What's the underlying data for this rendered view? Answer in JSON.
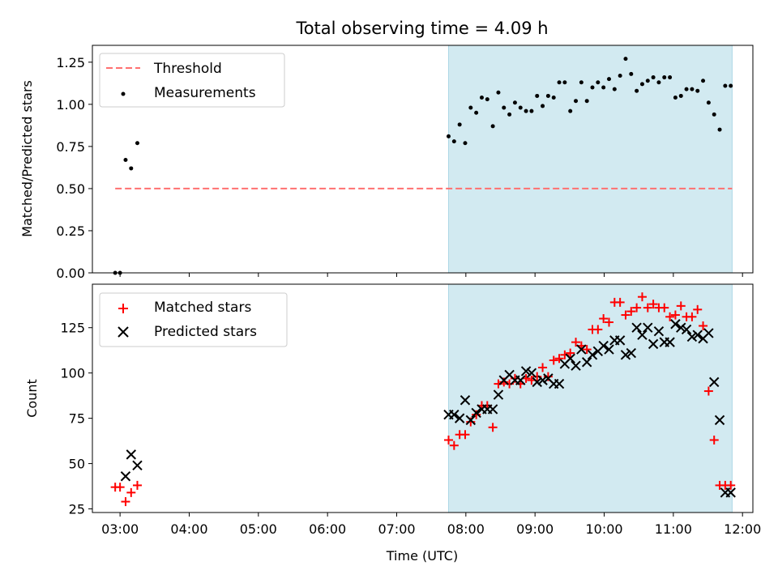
{
  "title": "Total observing time = 4.09 h",
  "colors": {
    "threshold": "#ff7070",
    "measurements": "#000000",
    "matched": "#ff0000",
    "predicted": "#000000",
    "observing_span": "#add8e6"
  },
  "chart_data": [
    {
      "type": "scatter",
      "name": "ratio-panel",
      "ylabel": "Matched/Predicted stars",
      "xlim": [
        2.6,
        12.15
      ],
      "ylim": [
        0,
        1.35
      ],
      "yticks": [
        0.0,
        0.25,
        0.5,
        0.75,
        1.0,
        1.25
      ],
      "ytick_labels": [
        "0.00",
        "0.25",
        "0.50",
        "0.75",
        "1.00",
        "1.25"
      ],
      "xticks": [
        3,
        4,
        5,
        6,
        7,
        8,
        9,
        10,
        11,
        12
      ],
      "shaded_span": [
        7.75,
        11.85
      ],
      "threshold": {
        "label": "Threshold",
        "y": 0.5,
        "x_range": [
          2.93,
          11.85
        ]
      },
      "legend": {
        "placement": "upper-left",
        "entries": [
          "Threshold",
          "Measurements"
        ]
      },
      "series": [
        {
          "name": "Measurements",
          "marker": "dot",
          "x": [
            2.93,
            3.0,
            3.08,
            3.16,
            3.25,
            7.75,
            7.83,
            7.91,
            7.99,
            8.07,
            8.15,
            8.23,
            8.31,
            8.39,
            8.47,
            8.55,
            8.63,
            8.71,
            8.79,
            8.87,
            8.95,
            9.03,
            9.11,
            9.19,
            9.27,
            9.35,
            9.43,
            9.51,
            9.59,
            9.67,
            9.75,
            9.83,
            9.91,
            9.99,
            10.07,
            10.15,
            10.23,
            10.31,
            10.39,
            10.47,
            10.55,
            10.63,
            10.71,
            10.79,
            10.87,
            10.95,
            11.03,
            11.11,
            11.19,
            11.27,
            11.35,
            11.43,
            11.51,
            11.59,
            11.67,
            11.75,
            11.83
          ],
          "y": [
            0.0,
            0.0,
            0.67,
            0.62,
            0.77,
            0.81,
            0.78,
            0.88,
            0.77,
            0.98,
            0.95,
            1.04,
            1.03,
            0.87,
            1.07,
            0.98,
            0.94,
            1.01,
            0.98,
            0.96,
            0.96,
            1.05,
            0.99,
            1.05,
            1.04,
            1.13,
            1.13,
            0.96,
            1.02,
            1.13,
            1.02,
            1.1,
            1.13,
            1.1,
            1.15,
            1.09,
            1.17,
            1.27,
            1.18,
            1.08,
            1.12,
            1.14,
            1.16,
            1.13,
            1.16,
            1.16,
            1.04,
            1.05,
            1.09,
            1.09,
            1.08,
            1.14,
            1.01,
            0.94,
            0.85,
            1.11,
            1.11
          ]
        }
      ]
    },
    {
      "type": "scatter",
      "name": "count-panel",
      "xlabel": "Time (UTC)",
      "ylabel": "Count",
      "xlim": [
        2.6,
        12.15
      ],
      "ylim": [
        23,
        149
      ],
      "yticks": [
        25,
        50,
        75,
        100,
        125
      ],
      "ytick_labels": [
        "25",
        "50",
        "75",
        "100",
        "125"
      ],
      "xticks": [
        3,
        4,
        5,
        6,
        7,
        8,
        9,
        10,
        11,
        12
      ],
      "xtick_labels": [
        "03:00",
        "04:00",
        "05:00",
        "06:00",
        "07:00",
        "08:00",
        "09:00",
        "10:00",
        "11:00",
        "12:00"
      ],
      "shaded_span": [
        7.75,
        11.85
      ],
      "legend": {
        "placement": "upper-left",
        "entries": [
          "Matched stars",
          "Predicted stars"
        ]
      },
      "series": [
        {
          "name": "Matched stars",
          "marker": "plus",
          "x": [
            2.93,
            3.0,
            3.08,
            3.16,
            3.25,
            7.75,
            7.83,
            7.91,
            7.99,
            8.07,
            8.15,
            8.23,
            8.31,
            8.39,
            8.47,
            8.55,
            8.63,
            8.71,
            8.79,
            8.87,
            8.95,
            9.03,
            9.11,
            9.19,
            9.27,
            9.35,
            9.43,
            9.51,
            9.59,
            9.67,
            9.75,
            9.83,
            9.91,
            9.99,
            10.07,
            10.15,
            10.23,
            10.31,
            10.39,
            10.47,
            10.55,
            10.63,
            10.71,
            10.79,
            10.87,
            10.95,
            11.03,
            11.11,
            11.19,
            11.27,
            11.35,
            11.43,
            11.51,
            11.59,
            11.67,
            11.75,
            11.83
          ],
          "y": [
            37,
            37,
            29,
            34,
            38,
            63,
            60,
            66,
            66,
            73,
            77,
            82,
            82,
            70,
            94,
            95,
            94,
            97,
            94,
            97,
            96,
            98,
            103,
            98,
            107,
            108,
            110,
            111,
            117,
            115,
            113,
            124,
            124,
            130,
            128,
            139,
            139,
            132,
            134,
            136,
            142,
            136,
            138,
            136,
            136,
            131,
            132,
            137,
            131,
            131,
            135,
            126,
            90,
            63,
            38,
            38,
            38
          ]
        },
        {
          "name": "Predicted stars",
          "marker": "x",
          "x": [
            3.08,
            3.16,
            3.25,
            7.75,
            7.83,
            7.91,
            7.99,
            8.07,
            8.15,
            8.23,
            8.31,
            8.39,
            8.47,
            8.55,
            8.63,
            8.71,
            8.79,
            8.87,
            8.95,
            9.03,
            9.11,
            9.19,
            9.27,
            9.35,
            9.43,
            9.51,
            9.59,
            9.67,
            9.75,
            9.83,
            9.91,
            9.99,
            10.07,
            10.15,
            10.23,
            10.31,
            10.39,
            10.47,
            10.55,
            10.63,
            10.71,
            10.79,
            10.87,
            10.95,
            11.03,
            11.11,
            11.19,
            11.27,
            11.35,
            11.43,
            11.51,
            11.59,
            11.67,
            11.75,
            11.83
          ],
          "y": [
            43,
            55,
            49,
            77,
            77,
            75,
            85,
            74,
            78,
            80,
            80,
            80,
            88,
            96,
            99,
            96,
            96,
            101,
            100,
            95,
            96,
            97,
            94,
            94,
            105,
            108,
            104,
            113,
            106,
            110,
            112,
            115,
            113,
            118,
            118,
            110,
            111,
            125,
            121,
            125,
            116,
            123,
            117,
            117,
            127,
            125,
            124,
            120,
            121,
            119,
            122,
            95,
            74,
            34,
            34
          ]
        }
      ]
    }
  ]
}
